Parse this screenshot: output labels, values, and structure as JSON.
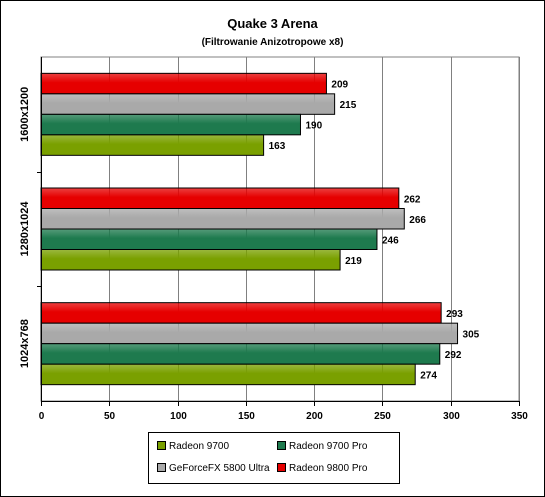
{
  "chart_data": {
    "type": "bar",
    "orientation": "horizontal",
    "title": "Quake 3 Arena",
    "subtitle": "(Filtrowanie Anizotropowe x8)",
    "categories": [
      "1600x1200",
      "1280x1024",
      "1024x768"
    ],
    "series": [
      {
        "name": "Radeon 9800 Pro",
        "color": "#e60000",
        "values": [
          209,
          262,
          293
        ]
      },
      {
        "name": "GeForceFX 5800 Ultra",
        "color": "#a9a9a9",
        "values": [
          215,
          266,
          305
        ]
      },
      {
        "name": "Radeon 9700 Pro",
        "color": "#1e7a4e",
        "values": [
          190,
          246,
          292
        ]
      },
      {
        "name": "Radeon 9700",
        "color": "#7aa000",
        "values": [
          163,
          219,
          274
        ]
      }
    ],
    "xlim": [
      0,
      350
    ],
    "xticks": [
      0,
      50,
      100,
      150,
      200,
      250,
      300,
      350
    ],
    "grid": true,
    "legend_position": "bottom"
  },
  "legend": {
    "items": [
      {
        "label": "Radeon 9700",
        "color": "#7aa000"
      },
      {
        "label": "Radeon 9700 Pro",
        "color": "#1e7a4e"
      },
      {
        "label": "GeForceFX 5800 Ultra",
        "color": "#a9a9a9"
      },
      {
        "label": "Radeon 9800 Pro",
        "color": "#e60000"
      }
    ]
  }
}
